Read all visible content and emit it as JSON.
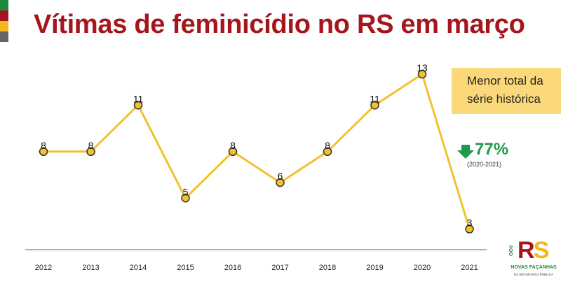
{
  "title": "Vítimas de feminicídio no RS em março",
  "flag_colors": [
    "#1f8a3b",
    "#a5151c",
    "#f2b81c",
    "#666666"
  ],
  "chart_data": {
    "type": "line",
    "categories": [
      "2012",
      "2013",
      "2014",
      "2015",
      "2016",
      "2017",
      "2018",
      "2019",
      "2020",
      "2021"
    ],
    "values": [
      8,
      8,
      11,
      5,
      8,
      6,
      8,
      11,
      13,
      3
    ],
    "title": "Vítimas de feminicídio no RS em março",
    "xlabel": "",
    "ylabel": "",
    "ylim": [
      0,
      14
    ],
    "grid": false,
    "data_labels": true,
    "line_color": "#f2c12e",
    "marker_fill": "#f2c12e",
    "marker_stroke": "#333333"
  },
  "callout": {
    "line1": "Menor total da",
    "line2": "série histórica",
    "background": "#fbd97a"
  },
  "change": {
    "value": "77%",
    "period": "(2020-2021)",
    "color": "#1f9a4b",
    "icon": "arrow-down-icon"
  },
  "logo": {
    "gov": "GOV",
    "brand_r": "R",
    "brand_s": "S",
    "tagline": "NOVAS FAÇANHAS",
    "subtitle": "NA SEGURANÇA PÚBLICA"
  }
}
